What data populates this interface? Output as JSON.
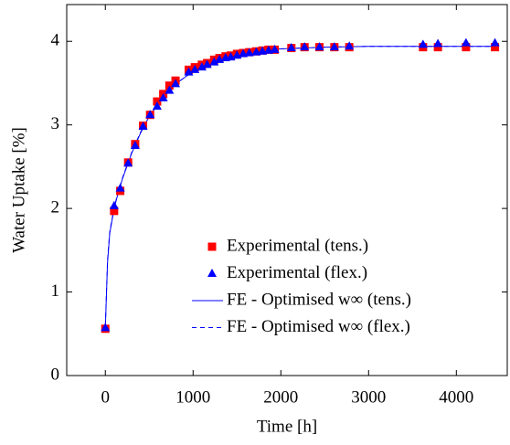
{
  "chart_data": {
    "type": "scatter",
    "x_label": "Time [h]",
    "y_label": "Water Uptake [%]",
    "xlim": [
      -440,
      4580
    ],
    "ylim": [
      0,
      4.44
    ],
    "xticks": [
      0,
      1000,
      2000,
      3000,
      4000
    ],
    "yticks": [
      0,
      1,
      2,
      3,
      4
    ],
    "legend_position": "lower right",
    "series": [
      {
        "name": "Experimental (tens.)",
        "color": "#ff0000",
        "mode": "markers",
        "marker": "square",
        "x": [
          0,
          100,
          170,
          260,
          340,
          430,
          510,
          590,
          660,
          730,
          800,
          950,
          1020,
          1100,
          1160,
          1240,
          1300,
          1370,
          1430,
          1500,
          1570,
          1640,
          1720,
          1790,
          1860,
          1930,
          2120,
          2270,
          2440,
          2610,
          2780,
          3620,
          3790,
          4110,
          4440
        ],
        "values": [
          0.56,
          1.97,
          2.21,
          2.55,
          2.77,
          2.99,
          3.12,
          3.28,
          3.37,
          3.47,
          3.53,
          3.66,
          3.69,
          3.72,
          3.74,
          3.78,
          3.8,
          3.82,
          3.83,
          3.85,
          3.86,
          3.87,
          3.88,
          3.89,
          3.9,
          3.9,
          3.92,
          3.93,
          3.93,
          3.93,
          3.93,
          3.93,
          3.93,
          3.93,
          3.93
        ]
      },
      {
        "name": "Experimental (flex.)",
        "color": "#0000ff",
        "mode": "markers",
        "marker": "triangle",
        "x": [
          0,
          100,
          170,
          260,
          340,
          430,
          510,
          590,
          660,
          730,
          800,
          950,
          1020,
          1100,
          1160,
          1240,
          1300,
          1370,
          1430,
          1500,
          1570,
          1640,
          1720,
          1790,
          1860,
          1930,
          2120,
          2270,
          2440,
          2610,
          2780,
          3620,
          3790,
          4110,
          4440
        ],
        "values": [
          0.57,
          2.03,
          2.24,
          2.54,
          2.75,
          2.98,
          3.12,
          3.22,
          3.32,
          3.41,
          3.49,
          3.63,
          3.66,
          3.69,
          3.72,
          3.75,
          3.78,
          3.8,
          3.81,
          3.83,
          3.85,
          3.86,
          3.87,
          3.88,
          3.89,
          3.9,
          3.92,
          3.93,
          3.93,
          3.93,
          3.94,
          3.96,
          3.97,
          3.98,
          3.98
        ]
      },
      {
        "name": "FE - Optimised w∞ (tens.)",
        "color": "#0000ff",
        "mode": "line",
        "dash": false,
        "x": [
          0,
          25,
          50,
          100,
          150,
          200,
          300,
          400,
          500,
          600,
          700,
          800,
          1000,
          1200,
          1400,
          1600,
          1800,
          2000,
          2500,
          3000,
          3500,
          4000,
          4450
        ],
        "values": [
          0.56,
          1.35,
          1.7,
          2.0,
          2.2,
          2.37,
          2.66,
          2.9,
          3.1,
          3.25,
          3.38,
          3.49,
          3.64,
          3.75,
          3.82,
          3.87,
          3.9,
          3.91,
          3.93,
          3.94,
          3.94,
          3.94,
          3.94
        ]
      },
      {
        "name": "FE - Optimised w∞ (flex.)",
        "color": "#0000ff",
        "mode": "line",
        "dash": true,
        "x": [
          0,
          25,
          50,
          100,
          150,
          200,
          300,
          400,
          500,
          600,
          700,
          800,
          1000,
          1200,
          1400,
          1600,
          1800,
          2000,
          2500,
          3000,
          3500,
          4000,
          4450
        ],
        "values": [
          0.6,
          1.38,
          1.72,
          2.01,
          2.21,
          2.38,
          2.67,
          2.91,
          3.1,
          3.25,
          3.38,
          3.49,
          3.64,
          3.75,
          3.82,
          3.87,
          3.9,
          3.91,
          3.93,
          3.94,
          3.94,
          3.94,
          3.94
        ]
      }
    ]
  }
}
